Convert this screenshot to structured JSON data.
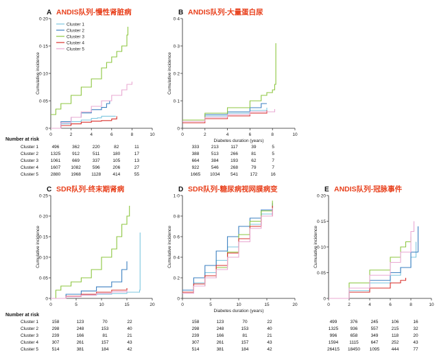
{
  "colors": {
    "cluster1": "#7cc6df",
    "cluster2": "#3a7fc0",
    "cluster3": "#8cc63f",
    "cluster4": "#d9302c",
    "cluster5": "#e9a8d2",
    "title": "#e8401c",
    "axis": "#222222"
  },
  "legend": [
    "Cluster 1",
    "Cluster 2",
    "Cluster 3",
    "Cluster 4",
    "Cluster 5"
  ],
  "risk_tables": [
    {
      "header": "Number at risk",
      "labels": [
        "Cluster 1",
        "Cluster 2",
        "Cluster 3",
        "Cluster 4",
        "Cluster 5"
      ],
      "panels": [
        {
          "rows": [
            [
              "496",
              "362",
              "220",
              "82",
              "11"
            ],
            [
              "1325",
              "912",
              "511",
              "180",
              "17"
            ],
            [
              "1061",
              "669",
              "337",
              "105",
              "13"
            ],
            [
              "1607",
              "1082",
              "596",
              "206",
              "27"
            ],
            [
              "2880",
              "1968",
              "1128",
              "414",
              "55"
            ]
          ]
        },
        {
          "rows": [
            [
              "333",
              "213",
              "117",
              "39",
              "5"
            ],
            [
              "388",
              "513",
              "266",
              "81",
              "5"
            ],
            [
              "664",
              "384",
              "193",
              "62",
              "7"
            ],
            [
              "922",
              "546",
              "268",
              "79",
              "7"
            ],
            [
              "1665",
              "1034",
              "541",
              "172",
              "16"
            ]
          ]
        }
      ]
    },
    {
      "header": "Number at risk",
      "labels": [
        "Cluster 1",
        "Cluster 2",
        "Cluster 3",
        "Cluster 4",
        "Cluster 5"
      ],
      "panels": [
        {
          "rows": [
            [
              "158",
              "123",
              "70",
              "22"
            ],
            [
              "298",
              "248",
              "153",
              "40"
            ],
            [
              "239",
              "166",
              "81",
              "21"
            ],
            [
              "307",
              "261",
              "157",
              "43"
            ],
            [
              "514",
              "381",
              "184",
              "42"
            ]
          ]
        },
        {
          "rows": [
            [
              "158",
              "123",
              "70",
              "22"
            ],
            [
              "298",
              "248",
              "153",
              "40"
            ],
            [
              "239",
              "166",
              "81",
              "21"
            ],
            [
              "307",
              "261",
              "157",
              "43"
            ],
            [
              "514",
              "381",
              "184",
              "42"
            ]
          ]
        },
        {
          "rows": [
            [
              "499",
              "376",
              "245",
              "106",
              "16"
            ],
            [
              "1325",
              "936",
              "557",
              "215",
              "32"
            ],
            [
              "996",
              "658",
              "349",
              "118",
              "20"
            ],
            [
              "1594",
              "1115",
              "647",
              "252",
              "43"
            ],
            [
              "26415",
              "18450",
              "1095",
              "444",
              "77"
            ]
          ]
        }
      ]
    }
  ],
  "chart_data": [
    {
      "type": "line",
      "letter": "A",
      "title": "ANDIS队列-慢性肾脏病",
      "xlabel": "",
      "ylabel": "Cumulative incidence",
      "xlim": [
        0,
        10
      ],
      "ylim": [
        0,
        0.2
      ],
      "xticks": [
        "0",
        "2",
        "4",
        "6",
        "8",
        "10"
      ],
      "yticks": [
        "0",
        "0·05",
        "0·10",
        "0·15",
        "0·20"
      ],
      "legend": true,
      "series": [
        {
          "name": "Cluster 1",
          "x": [
            0,
            1,
            2,
            3,
            4,
            4.6,
            5,
            6.4
          ],
          "y": [
            0,
            0.008,
            0.012,
            0.015,
            0.018,
            0.019,
            0.022,
            0.022
          ]
        },
        {
          "name": "Cluster 2",
          "x": [
            0,
            1,
            2,
            3,
            4,
            5,
            5.5,
            5.8,
            6
          ],
          "y": [
            0,
            0.012,
            0.02,
            0.028,
            0.034,
            0.038,
            0.045,
            0.05,
            0.05
          ]
        },
        {
          "name": "Cluster 3",
          "x": [
            0,
            0.5,
            1,
            2,
            3,
            4,
            5,
            5.5,
            6,
            6.5,
            7,
            7.5,
            7.6
          ],
          "y": [
            0.025,
            0.035,
            0.045,
            0.06,
            0.075,
            0.09,
            0.11,
            0.12,
            0.13,
            0.14,
            0.15,
            0.17,
            0.185
          ]
        },
        {
          "name": "Cluster 4",
          "x": [
            0,
            1,
            2,
            3,
            4,
            5,
            6,
            6.5
          ],
          "y": [
            0,
            0.005,
            0.008,
            0.011,
            0.013,
            0.014,
            0.017,
            0.022
          ]
        },
        {
          "name": "Cluster 5",
          "x": [
            0,
            1,
            2,
            3,
            4,
            5,
            6,
            7,
            7.5,
            8
          ],
          "y": [
            0,
            0.01,
            0.02,
            0.03,
            0.04,
            0.05,
            0.06,
            0.07,
            0.08,
            0.085
          ]
        }
      ]
    },
    {
      "type": "line",
      "letter": "B",
      "title": "ANDIS队列-大量蛋白尿",
      "xlabel": "Diabetes duration (years)",
      "ylabel": "Cumulative incidence",
      "xlim": [
        0,
        10
      ],
      "ylim": [
        0,
        0.4
      ],
      "xticks": [
        "0",
        "2",
        "4",
        "6",
        "8",
        "10"
      ],
      "yticks": [
        "0",
        "0·1",
        "0·2",
        "0·3",
        "0·4"
      ],
      "legend": false,
      "series": [
        {
          "name": "Cluster 1",
          "x": [
            0,
            2,
            4,
            6,
            7.5
          ],
          "y": [
            0.03,
            0.045,
            0.055,
            0.065,
            0.075
          ]
        },
        {
          "name": "Cluster 2",
          "x": [
            0,
            2,
            4,
            6,
            7,
            7.5
          ],
          "y": [
            0.03,
            0.05,
            0.06,
            0.075,
            0.09,
            0.09
          ]
        },
        {
          "name": "Cluster 3",
          "x": [
            0,
            2,
            4,
            6,
            7,
            7.5,
            8,
            8.2,
            8.3
          ],
          "y": [
            0.03,
            0.055,
            0.075,
            0.1,
            0.12,
            0.13,
            0.14,
            0.16,
            0.31
          ]
        },
        {
          "name": "Cluster 4",
          "x": [
            0,
            2,
            4,
            6,
            7.5
          ],
          "y": [
            0.02,
            0.035,
            0.045,
            0.055,
            0.065
          ]
        },
        {
          "name": "Cluster 5",
          "x": [
            0,
            2,
            4,
            6,
            8.2
          ],
          "y": [
            0.025,
            0.04,
            0.05,
            0.06,
            0.07
          ]
        }
      ]
    },
    {
      "type": "line",
      "letter": "C",
      "title": "SDR队列-终末期肾病",
      "xlabel": "",
      "ylabel": "Cumulative incidence",
      "xlim": [
        0,
        20
      ],
      "ylim": [
        0,
        0.25
      ],
      "xticks": [
        "0",
        "5",
        "10",
        "15",
        "20"
      ],
      "yticks": [
        "0",
        "0·05",
        "0·10",
        "0·15",
        "0·20",
        "0·25"
      ],
      "legend": false,
      "series": [
        {
          "name": "Cluster 1",
          "x": [
            0,
            3,
            6,
            9,
            12,
            15,
            17.5,
            17.6
          ],
          "y": [
            0,
            0.005,
            0.008,
            0.01,
            0.012,
            0.015,
            0.02,
            0.16
          ]
        },
        {
          "name": "Cluster 2",
          "x": [
            0,
            3,
            6,
            9,
            12,
            14,
            15
          ],
          "y": [
            0,
            0.01,
            0.018,
            0.028,
            0.04,
            0.07,
            0.09
          ]
        },
        {
          "name": "Cluster 3",
          "x": [
            0,
            1,
            2,
            4,
            6,
            8,
            10,
            12,
            13,
            14,
            15,
            15.5
          ],
          "y": [
            0,
            0.02,
            0.03,
            0.04,
            0.05,
            0.07,
            0.1,
            0.12,
            0.15,
            0.18,
            0.2,
            0.225
          ]
        },
        {
          "name": "Cluster 4",
          "x": [
            0,
            3,
            6,
            9,
            12,
            15
          ],
          "y": [
            0,
            0.005,
            0.01,
            0.015,
            0.02,
            0.025
          ]
        },
        {
          "name": "Cluster 5",
          "x": [
            0,
            3,
            6,
            9,
            12,
            15
          ],
          "y": [
            0,
            0.004,
            0.008,
            0.012,
            0.016,
            0.02
          ]
        }
      ]
    },
    {
      "type": "line",
      "letter": "D",
      "title": "SDR队列-糖尿病视网膜病变",
      "xlabel": "Diabetes duration (years)",
      "ylabel": "Cumulative incidence",
      "xlim": [
        0,
        20
      ],
      "ylim": [
        0,
        1.0
      ],
      "xticks": [
        "0",
        "5",
        "10",
        "15",
        "20"
      ],
      "yticks": [
        "0",
        "0·2",
        "0·4",
        "0·6",
        "0·8",
        "1·0"
      ],
      "legend": false,
      "series": [
        {
          "name": "Cluster 1",
          "x": [
            0,
            2,
            4,
            6,
            8,
            10,
            12,
            14,
            16
          ],
          "y": [
            0.05,
            0.15,
            0.25,
            0.37,
            0.5,
            0.62,
            0.72,
            0.82,
            0.92
          ]
        },
        {
          "name": "Cluster 2",
          "x": [
            0,
            2,
            4,
            6,
            8,
            10,
            12,
            14,
            16
          ],
          "y": [
            0.08,
            0.2,
            0.32,
            0.46,
            0.6,
            0.7,
            0.78,
            0.86,
            0.93
          ]
        },
        {
          "name": "Cluster 3",
          "x": [
            0,
            2,
            4,
            6,
            8,
            10,
            12,
            14,
            16
          ],
          "y": [
            0.05,
            0.12,
            0.2,
            0.3,
            0.45,
            0.62,
            0.75,
            0.85,
            0.95
          ]
        },
        {
          "name": "Cluster 4",
          "x": [
            0,
            2,
            4,
            6,
            8,
            10,
            12,
            14,
            16
          ],
          "y": [
            0.06,
            0.14,
            0.22,
            0.32,
            0.44,
            0.58,
            0.7,
            0.8,
            0.9
          ]
        },
        {
          "name": "Cluster 5",
          "x": [
            0,
            2,
            4,
            6,
            8,
            10,
            12,
            14,
            16
          ],
          "y": [
            0.05,
            0.12,
            0.2,
            0.28,
            0.4,
            0.55,
            0.68,
            0.8,
            0.88
          ]
        }
      ]
    },
    {
      "type": "line",
      "letter": "E",
      "title": "ANDIS队列-冠脉事件",
      "xlabel": "",
      "ylabel": "Cumulative incidence",
      "xlim": [
        0,
        10
      ],
      "ylim": [
        0,
        0.2
      ],
      "xticks": [
        "0",
        "2",
        "4",
        "6",
        "8",
        "10"
      ],
      "yticks": [
        "0",
        "0·05",
        "0·10",
        "0·15",
        "0·20"
      ],
      "legend": false,
      "series": [
        {
          "name": "Cluster 1",
          "x": [
            0,
            2,
            4,
            6,
            7,
            8,
            8.5
          ],
          "y": [
            0,
            0.015,
            0.03,
            0.045,
            0.06,
            0.08,
            0.11
          ]
        },
        {
          "name": "Cluster 2",
          "x": [
            0,
            2,
            4,
            6,
            7,
            8,
            8.7
          ],
          "y": [
            0,
            0.02,
            0.035,
            0.05,
            0.06,
            0.09,
            0.14
          ]
        },
        {
          "name": "Cluster 3",
          "x": [
            0,
            2,
            4,
            6,
            7,
            7.5,
            8
          ],
          "y": [
            0,
            0.03,
            0.055,
            0.08,
            0.1,
            0.11,
            0.12
          ]
        },
        {
          "name": "Cluster 4",
          "x": [
            0,
            2,
            4,
            6,
            7,
            7.5
          ],
          "y": [
            0,
            0.012,
            0.02,
            0.03,
            0.035,
            0.04
          ]
        },
        {
          "name": "Cluster 5",
          "x": [
            0,
            2,
            4,
            6,
            7,
            8,
            8.3
          ],
          "y": [
            0,
            0.02,
            0.045,
            0.07,
            0.09,
            0.13,
            0.15
          ]
        }
      ]
    }
  ]
}
